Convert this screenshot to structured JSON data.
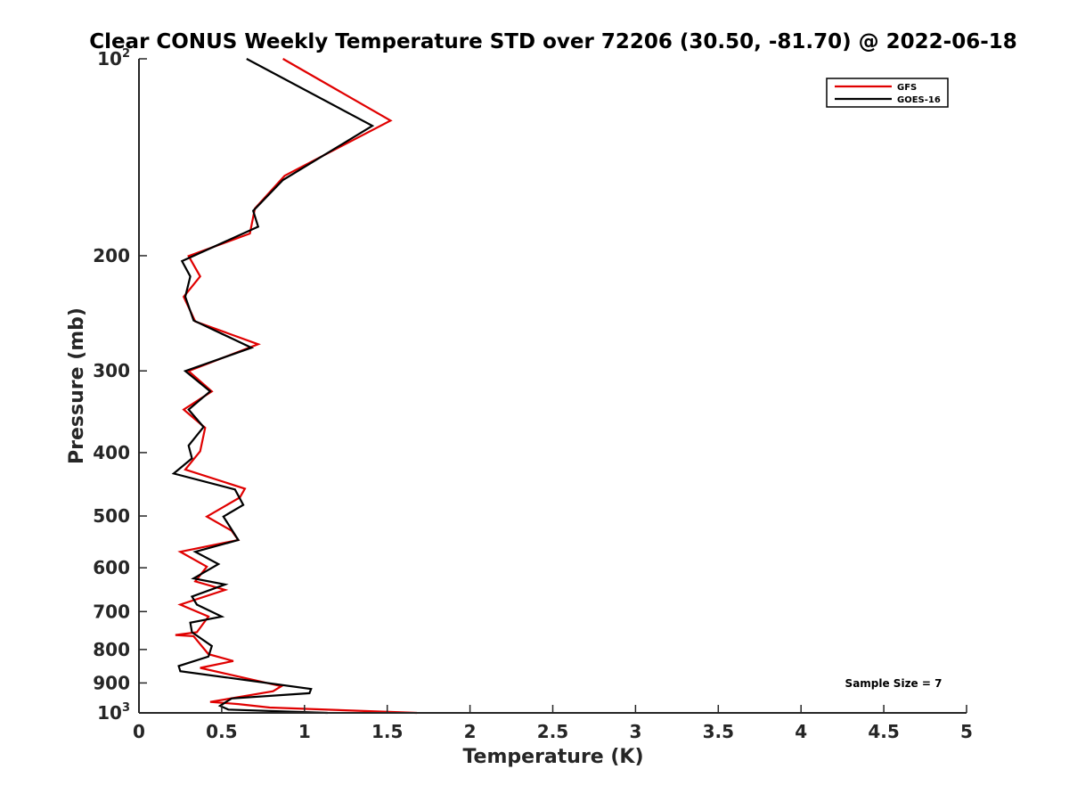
{
  "chart_data": {
    "type": "line",
    "title": "Clear CONUS Weekly Temperature STD over 72206 (30.50, -81.70) @ 2022-06-18",
    "xlabel": "Temperature (K)",
    "ylabel": "Pressure (mb)",
    "xlim": [
      0,
      5
    ],
    "ylim": [
      1000,
      100
    ],
    "y_scale": "log",
    "y_reversed": true,
    "grid": false,
    "x_ticks": [
      {
        "value": 0,
        "label": "0"
      },
      {
        "value": 0.5,
        "label": "0.5"
      },
      {
        "value": 1,
        "label": "1"
      },
      {
        "value": 1.5,
        "label": "1.5"
      },
      {
        "value": 2,
        "label": "2"
      },
      {
        "value": 2.5,
        "label": "2.5"
      },
      {
        "value": 3,
        "label": "3"
      },
      {
        "value": 3.5,
        "label": "3.5"
      },
      {
        "value": 4,
        "label": "4"
      },
      {
        "value": 4.5,
        "label": "4.5"
      },
      {
        "value": 5,
        "label": "5"
      }
    ],
    "y_ticks": [
      {
        "value": 100,
        "base": "10",
        "exp": "2"
      },
      {
        "value": 200,
        "label": "200"
      },
      {
        "value": 300,
        "label": "300"
      },
      {
        "value": 400,
        "label": "400"
      },
      {
        "value": 500,
        "label": "500"
      },
      {
        "value": 600,
        "label": "600"
      },
      {
        "value": 700,
        "label": "700"
      },
      {
        "value": 800,
        "label": "800"
      },
      {
        "value": 900,
        "label": "900"
      },
      {
        "value": 1000,
        "base": "10",
        "exp": "3"
      }
    ],
    "legend_position": "top-right",
    "annotation": "Sample Size = 7",
    "series": [
      {
        "name": "GFS",
        "color": "#e00000",
        "points": [
          [
            0.87,
            100
          ],
          [
            1.52,
            124.3
          ],
          [
            0.88,
            150.9
          ],
          [
            0.7,
            169.4
          ],
          [
            0.67,
            185.0
          ],
          [
            0.3,
            200.2
          ],
          [
            0.37,
            215.1
          ],
          [
            0.27,
            231.1
          ],
          [
            0.34,
            252.1
          ],
          [
            0.72,
            273.1
          ],
          [
            0.3,
            300.2
          ],
          [
            0.44,
            322.4
          ],
          [
            0.27,
            343.8
          ],
          [
            0.4,
            366.6
          ],
          [
            0.37,
            398.1
          ],
          [
            0.28,
            424.6
          ],
          [
            0.64,
            454.2
          ],
          [
            0.61,
            468.3
          ],
          [
            0.41,
            501.1
          ],
          [
            0.56,
            526.6
          ],
          [
            0.6,
            544.2
          ],
          [
            0.25,
            567.1
          ],
          [
            0.41,
            597.7
          ],
          [
            0.34,
            629.4
          ],
          [
            0.52,
            648.6
          ],
          [
            0.25,
            683.0
          ],
          [
            0.42,
            712.4
          ],
          [
            0.35,
            752.8
          ],
          [
            0.22,
            760.3
          ],
          [
            0.33,
            763.3
          ],
          [
            0.42,
            813.2
          ],
          [
            0.57,
            833.1
          ],
          [
            0.37,
            853.4
          ],
          [
            0.86,
            910.6
          ],
          [
            0.81,
            926.7
          ],
          [
            0.43,
            962.1
          ],
          [
            0.6,
            969.5
          ],
          [
            0.79,
            981.2
          ],
          [
            1.68,
            1000
          ]
        ]
      },
      {
        "name": "GOES-16",
        "color": "#000000",
        "points": [
          [
            0.65,
            100
          ],
          [
            1.41,
            126.6
          ],
          [
            0.87,
            153.2
          ],
          [
            0.69,
            170.8
          ],
          [
            0.72,
            180.6
          ],
          [
            0.26,
            203.8
          ],
          [
            0.31,
            215.1
          ],
          [
            0.28,
            231.1
          ],
          [
            0.33,
            251.2
          ],
          [
            0.68,
            276.5
          ],
          [
            0.28,
            300.2
          ],
          [
            0.43,
            322.4
          ],
          [
            0.3,
            343.8
          ],
          [
            0.39,
            365.6
          ],
          [
            0.3,
            390.2
          ],
          [
            0.32,
            408.2
          ],
          [
            0.21,
            430.6
          ],
          [
            0.58,
            455.4
          ],
          [
            0.63,
            480.8
          ],
          [
            0.51,
            501.1
          ],
          [
            0.6,
            544.2
          ],
          [
            0.34,
            567.1
          ],
          [
            0.48,
            592.3
          ],
          [
            0.33,
            622.8
          ],
          [
            0.52,
            636.3
          ],
          [
            0.32,
            664.0
          ],
          [
            0.35,
            683.0
          ],
          [
            0.5,
            712.4
          ],
          [
            0.31,
            728.1
          ],
          [
            0.32,
            752.8
          ],
          [
            0.44,
            790.3
          ],
          [
            0.42,
            820.1
          ],
          [
            0.24,
            848.0
          ],
          [
            0.25,
            863.5
          ],
          [
            1.04,
            919.1
          ],
          [
            1.03,
            932.9
          ],
          [
            0.56,
            950.4
          ],
          [
            0.49,
            975.4
          ],
          [
            0.54,
            988.6
          ],
          [
            1.14,
            1000
          ]
        ]
      }
    ]
  }
}
